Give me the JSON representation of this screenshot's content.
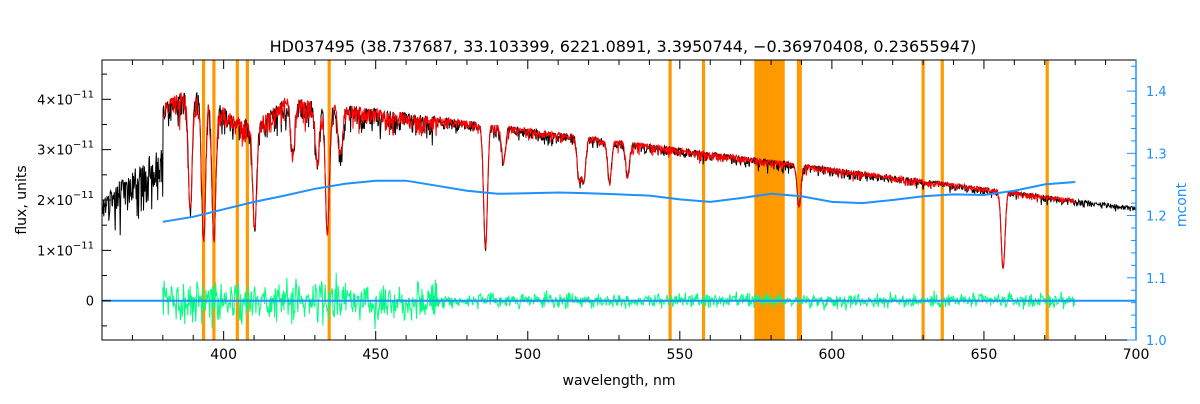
{
  "chart_data": {
    "type": "line",
    "title": "HD037495    (38.737687, 33.103399, 6221.0891, 3.3950744, −0.36970408, 0.23655947)",
    "xlabel": "wavelength, nm",
    "ylabel_left": "flux, units",
    "ylabel_right": "mcont",
    "xlim": [
      360,
      700
    ],
    "ylim_left": [
      -7.8e-12,
      4.78e-11
    ],
    "ylim_right": [
      1.0,
      1.45
    ],
    "x_ticks": [
      "400",
      "450",
      "500",
      "550",
      "600",
      "650",
      "700"
    ],
    "x_tick_values": [
      400,
      450,
      500,
      550,
      600,
      650,
      700
    ],
    "y_ticks_left": [
      {
        "value": 0,
        "mant": "0",
        "exp": ""
      },
      {
        "value": 1e-11,
        "mant": "1×10",
        "exp": "−11"
      },
      {
        "value": 2e-11,
        "mant": "2×10",
        "exp": "−11"
      },
      {
        "value": 3e-11,
        "mant": "3×10",
        "exp": "−11"
      },
      {
        "value": 4e-11,
        "mant": "4×10",
        "exp": "−11"
      }
    ],
    "y_ticks_right": [
      "1.0",
      "1.1",
      "1.2",
      "1.3",
      "1.4"
    ],
    "y_tick_values_right": [
      1.0,
      1.1,
      1.2,
      1.3,
      1.4
    ],
    "masked_lines_nm": [
      393.4,
      396.8,
      404.5,
      407.8,
      434.7,
      546.8,
      557.8,
      589.0,
      589.6,
      630.0,
      636.3,
      670.8
    ],
    "masked_bands_nm": [
      [
        574.5,
        584.5
      ]
    ],
    "strong_lines_nm": [
      {
        "x": 389.0,
        "d": 0.55
      },
      {
        "x": 393.4,
        "d": 0.7
      },
      {
        "x": 396.8,
        "d": 0.7
      },
      {
        "x": 410.2,
        "d": 0.6
      },
      {
        "x": 422.7,
        "d": 0.25
      },
      {
        "x": 430.8,
        "d": 0.3
      },
      {
        "x": 434.1,
        "d": 0.65
      },
      {
        "x": 438.4,
        "d": 0.25
      },
      {
        "x": 486.1,
        "d": 0.7
      },
      {
        "x": 492.0,
        "d": 0.2
      },
      {
        "x": 516.9,
        "d": 0.25
      },
      {
        "x": 518.4,
        "d": 0.25
      },
      {
        "x": 526.9,
        "d": 0.25
      },
      {
        "x": 532.8,
        "d": 0.2
      },
      {
        "x": 589.2,
        "d": 0.3
      },
      {
        "x": 656.3,
        "d": 0.7
      }
    ],
    "series": [
      {
        "name": "observed flux",
        "color": "#000000",
        "x_range": [
          360,
          700
        ]
      },
      {
        "name": "model fit",
        "color": "#ff0000",
        "x_range": [
          380,
          680
        ]
      },
      {
        "name": "masked model",
        "color": "#ffff00"
      },
      {
        "name": "residuals",
        "color": "#00ff7f",
        "x_range": [
          380,
          680
        ]
      },
      {
        "name": "mcont",
        "color": "#1e90ff",
        "axis": "right",
        "x": [
          380,
          390,
          400,
          410,
          420,
          430,
          440,
          450,
          460,
          470,
          480,
          490,
          500,
          510,
          520,
          530,
          540,
          550,
          560,
          570,
          580,
          590,
          600,
          610,
          620,
          630,
          640,
          650,
          660,
          670,
          680
        ],
        "y": [
          1.19,
          1.198,
          1.21,
          1.222,
          1.232,
          1.243,
          1.251,
          1.256,
          1.256,
          1.248,
          1.24,
          1.235,
          1.236,
          1.237,
          1.236,
          1.234,
          1.232,
          1.226,
          1.222,
          1.228,
          1.235,
          1.231,
          1.222,
          1.22,
          1.225,
          1.231,
          1.234,
          1.233,
          1.24,
          1.25,
          1.254
        ]
      },
      {
        "name": "zero line",
        "color": "#1e90ff",
        "x_range": [
          360,
          700
        ],
        "y": 0
      }
    ],
    "colors": {
      "frame": "#000000",
      "right_axis": "#1e90ff",
      "mask": "#ff9900"
    },
    "grid": false
  }
}
